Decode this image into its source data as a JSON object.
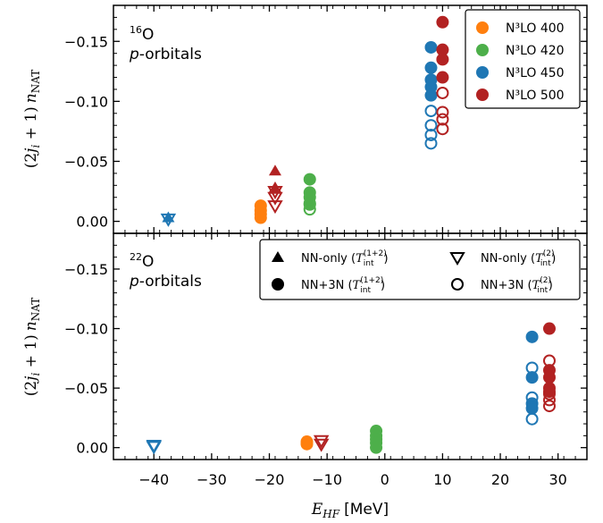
{
  "chart_data": [
    {
      "type": "scatter",
      "panel": "top",
      "annotation_line1_sup": "16",
      "annotation_line1": "O",
      "annotation_line2_italic": "p",
      "annotation_line2": "-orbitals",
      "ylabel": "(2j_i+1) n_NAT",
      "ylim": [
        0.01,
        -0.18
      ],
      "yticks": [
        0.0,
        -0.05,
        -0.1,
        -0.15
      ],
      "ytick_labels": [
        "0.00",
        "−0.05",
        "−0.10",
        "−0.15"
      ],
      "legend_placement": "top-right",
      "legend": [
        {
          "label": "N³LO 400",
          "color": "#ff7f0e"
        },
        {
          "label": "N³LO 420",
          "color": "#4daf4a"
        },
        {
          "label": "N³LO 450",
          "color": "#1f77b4"
        },
        {
          "label": "N³LO 500",
          "color": "#b22222"
        }
      ],
      "series": [
        {
          "name": "N³LO 450",
          "color": "#1f77b4",
          "marker": "triangle-up",
          "x": [
            -37.5
          ],
          "y": [
            -0.003
          ]
        },
        {
          "name": "N³LO 450",
          "color": "#1f77b4",
          "marker": "triangle-down",
          "x": [
            -37.5
          ],
          "y": [
            -0.002
          ]
        },
        {
          "name": "N³LO 450",
          "color": "#1f77b4",
          "marker": "circle-filled",
          "x": [
            8,
            8,
            8,
            8,
            8
          ],
          "y": [
            -0.145,
            -0.128,
            -0.112,
            -0.105,
            -0.118
          ]
        },
        {
          "name": "N³LO 450",
          "color": "#1f77b4",
          "marker": "circle-open",
          "x": [
            8,
            8,
            8,
            8
          ],
          "y": [
            -0.092,
            -0.08,
            -0.072,
            -0.065
          ]
        },
        {
          "name": "N³LO 400",
          "color": "#ff7f0e",
          "marker": "circle-filled",
          "x": [
            -21.5,
            -21.5,
            -21.5,
            -21.5
          ],
          "y": [
            -0.013,
            -0.009,
            -0.006,
            -0.003
          ]
        },
        {
          "name": "N³LO 500",
          "color": "#b22222",
          "marker": "triangle-up",
          "x": [
            -19,
            -19
          ],
          "y": [
            -0.042,
            -0.028
          ]
        },
        {
          "name": "N³LO 500",
          "color": "#b22222",
          "marker": "triangle-down",
          "x": [
            -19,
            -19,
            -19
          ],
          "y": [
            -0.025,
            -0.02,
            -0.013
          ]
        },
        {
          "name": "N³LO 420",
          "color": "#4daf4a",
          "marker": "circle-filled",
          "x": [
            -13,
            -13,
            -13,
            -13
          ],
          "y": [
            -0.035,
            -0.024,
            -0.02,
            -0.015
          ]
        },
        {
          "name": "N³LO 420",
          "color": "#4daf4a",
          "marker": "circle-open",
          "x": [
            -13,
            -13
          ],
          "y": [
            -0.014,
            -0.01
          ]
        },
        {
          "name": "N³LO 500",
          "color": "#b22222",
          "marker": "circle-filled",
          "x": [
            10,
            10,
            10,
            10
          ],
          "y": [
            -0.166,
            -0.143,
            -0.135,
            -0.12
          ]
        },
        {
          "name": "N³LO 500",
          "color": "#b22222",
          "marker": "circle-open",
          "x": [
            10,
            10,
            10,
            10
          ],
          "y": [
            -0.107,
            -0.091,
            -0.085,
            -0.077
          ]
        }
      ]
    },
    {
      "type": "scatter",
      "panel": "bottom",
      "annotation_line1_sup": "22",
      "annotation_line1": "O",
      "annotation_line2_italic": "p",
      "annotation_line2": "-orbitals",
      "ylabel": "(2j_i+1) n_NAT",
      "xlabel_italic": "E",
      "xlabel_sub": "HF",
      "xlabel_units": "[MeV]",
      "xlim": [
        -47,
        35
      ],
      "xticks": [
        -40,
        -30,
        -20,
        -10,
        0,
        10,
        20,
        30
      ],
      "xtick_labels": [
        "−40",
        "−30",
        "−20",
        "−10",
        "0",
        "10",
        "20",
        "30"
      ],
      "ylim": [
        0.01,
        -0.18
      ],
      "yticks": [
        0.0,
        -0.05,
        -0.1,
        -0.15
      ],
      "ytick_labels": [
        "0.00",
        "−0.05",
        "−0.10",
        "−0.15"
      ],
      "legend_placement": "top-right",
      "legend": [
        {
          "marker": "triangle-up",
          "label": "NN-only",
          "t_sup": "(1+2)"
        },
        {
          "marker": "triangle-down",
          "label": "NN-only",
          "t_sup": "(2)"
        },
        {
          "marker": "circle-filled",
          "label": "NN+3N",
          "t_sup": "(1+2)"
        },
        {
          "marker": "circle-open",
          "label": "NN+3N",
          "t_sup": "(2)"
        }
      ],
      "legend_t_sub": "int",
      "series": [
        {
          "name": "N³LO 450",
          "color": "#1f77b4",
          "marker": "triangle-down",
          "x": [
            -40,
            -40
          ],
          "y": [
            -0.002,
            -0.001
          ]
        },
        {
          "name": "N³LO 400",
          "color": "#ff7f0e",
          "marker": "circle-filled",
          "x": [
            -13.5,
            -13.5
          ],
          "y": [
            -0.005,
            -0.003
          ]
        },
        {
          "name": "N³LO 500",
          "color": "#b22222",
          "marker": "triangle-down",
          "x": [
            -11,
            -11
          ],
          "y": [
            -0.006,
            -0.003
          ]
        },
        {
          "name": "N³LO 420",
          "color": "#4daf4a",
          "marker": "circle-filled",
          "x": [
            -1.5,
            -1.5,
            -1.5,
            -1.5,
            -1.5
          ],
          "y": [
            -0.014,
            -0.01,
            -0.007,
            -0.004,
            0.0
          ]
        },
        {
          "name": "N³LO 450",
          "color": "#1f77b4",
          "marker": "circle-filled",
          "x": [
            25.5,
            25.5,
            25.5,
            25.5
          ],
          "y": [
            -0.093,
            -0.059,
            -0.037,
            -0.033
          ]
        },
        {
          "name": "N³LO 450",
          "color": "#1f77b4",
          "marker": "circle-open",
          "x": [
            25.5,
            25.5,
            25.5
          ],
          "y": [
            -0.067,
            -0.042,
            -0.024
          ]
        },
        {
          "name": "N³LO 500",
          "color": "#b22222",
          "marker": "circle-filled",
          "x": [
            28.5,
            28.5,
            28.5,
            28.5,
            28.5
          ],
          "y": [
            -0.1,
            -0.065,
            -0.059,
            -0.05,
            -0.047
          ]
        },
        {
          "name": "N³LO 500",
          "color": "#b22222",
          "marker": "circle-open",
          "x": [
            28.5,
            28.5,
            28.5,
            28.5
          ],
          "y": [
            -0.073,
            -0.045,
            -0.04,
            -0.035
          ]
        }
      ]
    }
  ]
}
